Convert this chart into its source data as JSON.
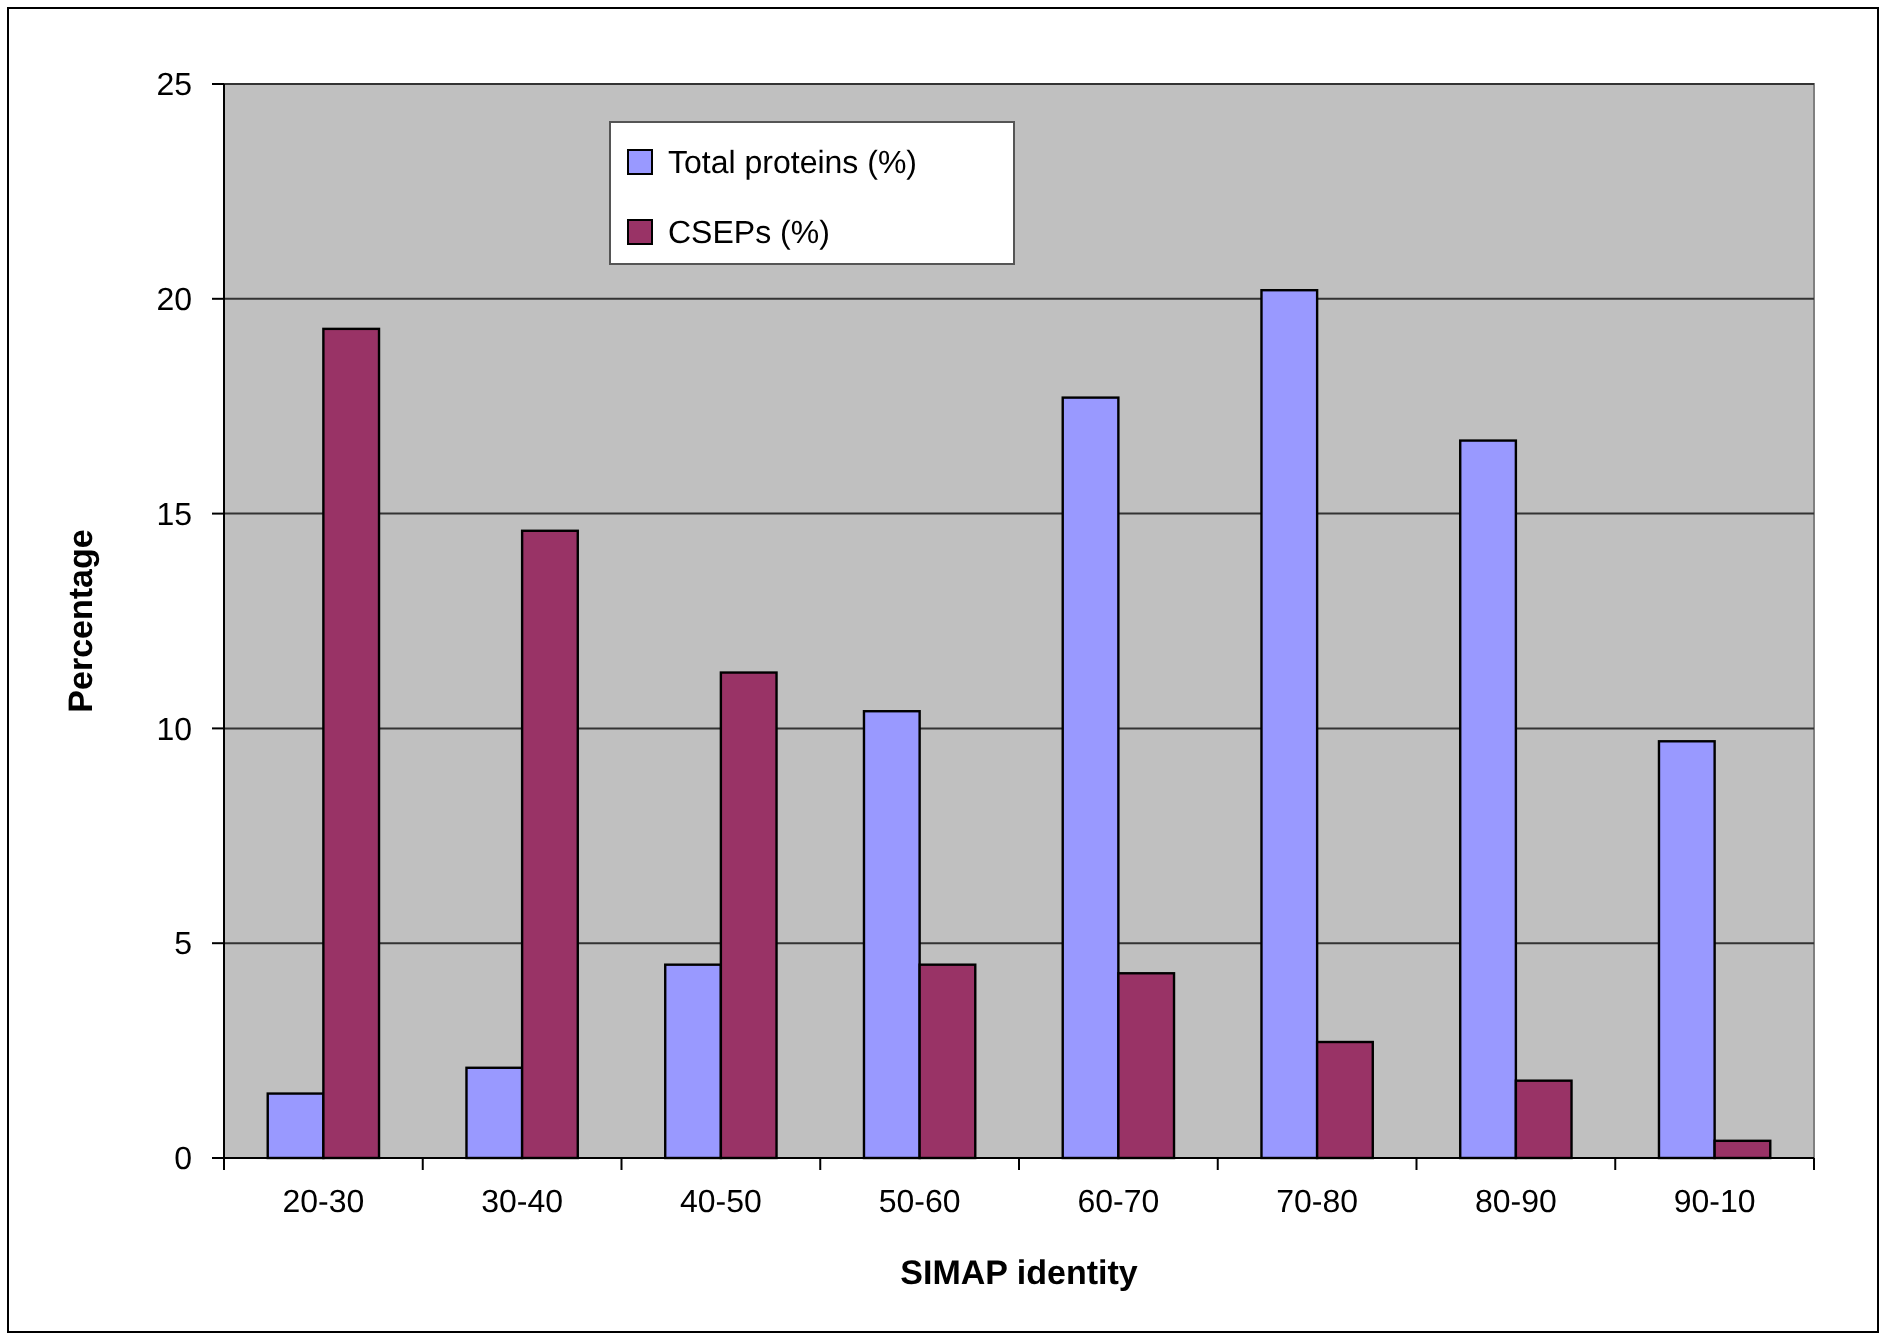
{
  "chart_data": {
    "type": "bar",
    "xlabel": "SIMAP identity",
    "ylabel": "Percentage",
    "categories": [
      "20-30",
      "30-40",
      "40-50",
      "50-60",
      "60-70",
      "70-80",
      "80-90",
      "90-10"
    ],
    "series": [
      {
        "name": "Total proteins (%)",
        "color": "#9999ff",
        "values": [
          1.5,
          2.1,
          4.5,
          10.4,
          17.7,
          20.2,
          16.7,
          9.7
        ]
      },
      {
        "name": "CSEPs (%)",
        "color": "#993366",
        "values": [
          19.3,
          14.6,
          11.3,
          4.5,
          4.3,
          2.7,
          1.8,
          0.4
        ]
      }
    ],
    "ylim": [
      0,
      25
    ],
    "yticks": [
      0,
      5,
      10,
      15,
      20,
      25
    ],
    "grid": "y",
    "legend": "top"
  }
}
